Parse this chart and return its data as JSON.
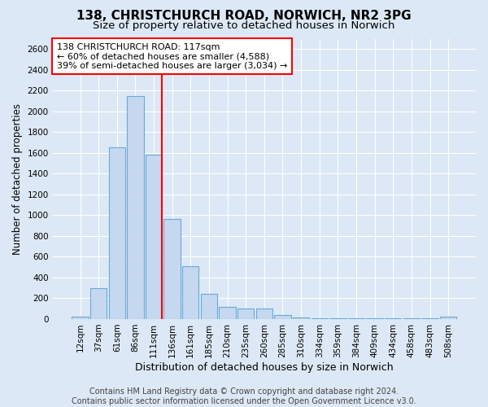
{
  "title": "138, CHRISTCHURCH ROAD, NORWICH, NR2 3PG",
  "subtitle": "Size of property relative to detached houses in Norwich",
  "xlabel": "Distribution of detached houses by size in Norwich",
  "ylabel": "Number of detached properties",
  "footer_line1": "Contains HM Land Registry data © Crown copyright and database right 2024.",
  "footer_line2": "Contains public sector information licensed under the Open Government Licence v3.0.",
  "annotation_line1": "138 CHRISTCHURCH ROAD: 117sqm",
  "annotation_line2": "← 60% of detached houses are smaller (4,588)",
  "annotation_line3": "39% of semi-detached houses are larger (3,034) →",
  "bar_labels": [
    "12sqm",
    "37sqm",
    "61sqm",
    "86sqm",
    "111sqm",
    "136sqm",
    "161sqm",
    "185sqm",
    "210sqm",
    "235sqm",
    "260sqm",
    "285sqm",
    "310sqm",
    "334sqm",
    "359sqm",
    "384sqm",
    "409sqm",
    "434sqm",
    "458sqm",
    "483sqm",
    "508sqm"
  ],
  "bar_values": [
    20,
    300,
    1650,
    2150,
    1580,
    960,
    510,
    245,
    120,
    100,
    100,
    40,
    15,
    5,
    5,
    5,
    5,
    5,
    5,
    5,
    20
  ],
  "bar_color": "#c5d8f0",
  "bar_edgecolor": "#6aaad4",
  "redline_bar_index": 4,
  "ylim": [
    0,
    2700
  ],
  "yticks": [
    0,
    200,
    400,
    600,
    800,
    1000,
    1200,
    1400,
    1600,
    1800,
    2000,
    2200,
    2400,
    2600
  ],
  "background_color": "#dce8f5",
  "plot_bg_color": "#dce8f5",
  "grid_color": "#ffffff",
  "title_fontsize": 11,
  "subtitle_fontsize": 9.5,
  "xlabel_fontsize": 9,
  "ylabel_fontsize": 8.5,
  "tick_fontsize": 7.5,
  "annotation_fontsize": 8,
  "footer_fontsize": 7
}
